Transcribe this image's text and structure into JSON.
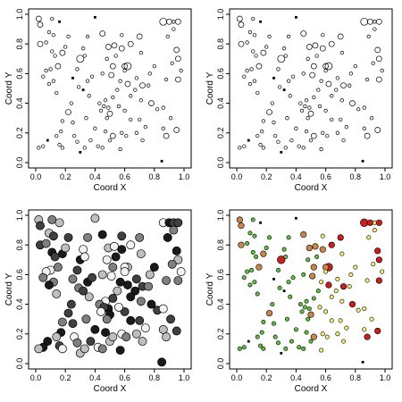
{
  "chart_data": [
    {
      "type": "scatter",
      "style": "open",
      "xlabel": "Coord X",
      "ylabel": "Coord Y",
      "xlim": [
        0,
        1
      ],
      "ylim": [
        0,
        1
      ],
      "xticks": [
        "0.0",
        "0.2",
        "0.4",
        "0.6",
        "0.8",
        "1.0"
      ],
      "yticks": [
        "0.0",
        "0.2",
        "0.4",
        "0.6",
        "0.8",
        "1.0"
      ],
      "grid": false,
      "points": [
        [
          0.02,
          0.97,
          2
        ],
        [
          0.03,
          0.93,
          2
        ],
        [
          0.11,
          0.97,
          1
        ],
        [
          0.16,
          0.95,
          0
        ],
        [
          0.09,
          0.88,
          1
        ],
        [
          0.12,
          0.86,
          1
        ],
        [
          0.03,
          0.8,
          2
        ],
        [
          0.07,
          0.81,
          1
        ],
        [
          0.11,
          0.75,
          1
        ],
        [
          0.18,
          0.74,
          2
        ],
        [
          0.13,
          0.72,
          1
        ],
        [
          0.1,
          0.63,
          1
        ],
        [
          0.12,
          0.55,
          1
        ],
        [
          0.09,
          0.53,
          1
        ],
        [
          0.14,
          0.47,
          1
        ],
        [
          0.3,
          0.7,
          3
        ],
        [
          0.32,
          0.77,
          1
        ],
        [
          0.35,
          0.85,
          1
        ],
        [
          0.4,
          0.98,
          0
        ],
        [
          0.45,
          0.87,
          2
        ],
        [
          0.49,
          0.78,
          2
        ],
        [
          0.48,
          0.7,
          1
        ],
        [
          0.53,
          0.79,
          2
        ],
        [
          0.54,
          0.72,
          1
        ],
        [
          0.58,
          0.77,
          2
        ],
        [
          0.58,
          0.86,
          1
        ],
        [
          0.62,
          0.65,
          3
        ],
        [
          0.64,
          0.8,
          2
        ],
        [
          0.7,
          0.85,
          2
        ],
        [
          0.71,
          0.74,
          1
        ],
        [
          0.68,
          0.57,
          1
        ],
        [
          0.72,
          0.52,
          2
        ],
        [
          0.76,
          0.52,
          1
        ],
        [
          0.8,
          0.65,
          1
        ],
        [
          0.78,
          0.4,
          2
        ],
        [
          0.82,
          0.36,
          1
        ],
        [
          0.86,
          0.37,
          1
        ],
        [
          0.88,
          0.56,
          1
        ],
        [
          0.86,
          0.95,
          3
        ],
        [
          0.9,
          0.95,
          2
        ],
        [
          0.93,
          0.95,
          1
        ],
        [
          0.96,
          0.95,
          2
        ],
        [
          0.93,
          0.9,
          1
        ],
        [
          0.89,
          0.85,
          1
        ],
        [
          0.95,
          0.76,
          2
        ],
        [
          0.96,
          0.7,
          2
        ],
        [
          0.98,
          0.62,
          1
        ],
        [
          0.92,
          0.67,
          1
        ],
        [
          0.96,
          0.56,
          2
        ],
        [
          0.86,
          0.23,
          1
        ],
        [
          0.88,
          0.18,
          2
        ],
        [
          0.95,
          0.22,
          2
        ],
        [
          0.85,
          0.01,
          0
        ],
        [
          0.57,
          0.55,
          1
        ],
        [
          0.55,
          0.49,
          1
        ],
        [
          0.52,
          0.44,
          1
        ],
        [
          0.47,
          0.42,
          1
        ],
        [
          0.43,
          0.4,
          1
        ],
        [
          0.49,
          0.37,
          1
        ],
        [
          0.5,
          0.33,
          2
        ],
        [
          0.46,
          0.38,
          1
        ],
        [
          0.44,
          0.35,
          1
        ],
        [
          0.48,
          0.3,
          1
        ],
        [
          0.4,
          0.23,
          1
        ],
        [
          0.36,
          0.45,
          1
        ],
        [
          0.28,
          0.63,
          1
        ],
        [
          0.25,
          0.57,
          0
        ],
        [
          0.29,
          0.51,
          1
        ],
        [
          0.35,
          0.55,
          1
        ],
        [
          0.32,
          0.49,
          0
        ],
        [
          0.24,
          0.4,
          1
        ],
        [
          0.22,
          0.34,
          2
        ],
        [
          0.18,
          0.28,
          1
        ],
        [
          0.17,
          0.21,
          1
        ],
        [
          0.14,
          0.18,
          1
        ],
        [
          0.16,
          0.12,
          1
        ],
        [
          0.18,
          0.1,
          1
        ],
        [
          0.08,
          0.15,
          0
        ],
        [
          0.05,
          0.11,
          1
        ],
        [
          0.02,
          0.1,
          1
        ],
        [
          0.25,
          0.27,
          1
        ],
        [
          0.26,
          0.18,
          1
        ],
        [
          0.28,
          0.14,
          1
        ],
        [
          0.3,
          0.07,
          0
        ],
        [
          0.33,
          0.1,
          1
        ],
        [
          0.37,
          0.15,
          1
        ],
        [
          0.42,
          0.11,
          1
        ],
        [
          0.45,
          0.1,
          1
        ],
        [
          0.47,
          0.21,
          1
        ],
        [
          0.5,
          0.15,
          1
        ],
        [
          0.52,
          0.18,
          2
        ],
        [
          0.58,
          0.2,
          1
        ],
        [
          0.61,
          0.18,
          1
        ],
        [
          0.64,
          0.29,
          1
        ],
        [
          0.68,
          0.2,
          1
        ],
        [
          0.7,
          0.29,
          1
        ],
        [
          0.74,
          0.24,
          1
        ],
        [
          0.71,
          0.42,
          1
        ],
        [
          0.67,
          0.49,
          1
        ],
        [
          0.62,
          0.53,
          2
        ],
        [
          0.6,
          0.35,
          1
        ],
        [
          0.56,
          0.38,
          1
        ],
        [
          0.6,
          0.65,
          2
        ],
        [
          0.52,
          0.65,
          2
        ],
        [
          0.45,
          0.6,
          1
        ],
        [
          0.38,
          0.58,
          1
        ],
        [
          0.33,
          0.72,
          1
        ],
        [
          0.34,
          0.3,
          1
        ],
        [
          0.15,
          0.65,
          2
        ],
        [
          0.2,
          0.78,
          1
        ],
        [
          0.22,
          0.85,
          1
        ],
        [
          0.07,
          0.62,
          1
        ],
        [
          0.05,
          0.58,
          1
        ],
        [
          0.64,
          0.45,
          1
        ],
        [
          0.77,
          0.6,
          1
        ],
        [
          0.91,
          0.3,
          1
        ],
        [
          0.6,
          0.62,
          1
        ],
        [
          0.51,
          0.59,
          2
        ],
        [
          0.57,
          0.09,
          1
        ],
        [
          0.72,
          0.15,
          1
        ]
      ]
    },
    {
      "type": "scatter",
      "style": "open",
      "xlabel": "Coord X",
      "ylabel": "Coord Y",
      "xlim": [
        0,
        1
      ],
      "ylim": [
        0,
        1
      ],
      "xticks": [
        "0.0",
        "0.2",
        "0.4",
        "0.6",
        "0.8",
        "1.0"
      ],
      "yticks": [
        "0.0",
        "0.2",
        "0.4",
        "0.6",
        "0.8",
        "1.0"
      ],
      "grid": false,
      "points": "same as panel 1"
    },
    {
      "type": "scatter",
      "style": "grayscale",
      "xlabel": "Coord X",
      "ylabel": "Coord Y",
      "xlim": [
        0,
        1
      ],
      "ylim": [
        0,
        1
      ],
      "xticks": [
        "0.0",
        "0.2",
        "0.4",
        "0.6",
        "0.8",
        "1.0"
      ],
      "yticks": [
        "0.0",
        "0.2",
        "0.4",
        "0.6",
        "0.8",
        "1.0"
      ],
      "grid": false,
      "points": "same positions as panel 1, all large"
    },
    {
      "type": "scatter",
      "style": "colored",
      "xlabel": "Coord X",
      "ylabel": "Coord Y",
      "xlim": [
        0,
        1
      ],
      "ylim": [
        0,
        1
      ],
      "xticks": [
        "0.0",
        "0.2",
        "0.4",
        "0.6",
        "0.8",
        "1.0"
      ],
      "yticks": [
        "0.0",
        "0.2",
        "0.4",
        "0.6",
        "0.8",
        "1.0"
      ],
      "grid": false,
      "points": "same as panel 1"
    }
  ],
  "palette": {
    "grayscale": [
      "#f2f2f2",
      "#bfbfbf",
      "#808080",
      "#404040",
      "#1a1a1a"
    ],
    "colored": [
      "#000000",
      "#5fbf3f",
      "#f5ef7a",
      "#c8864a",
      "#c81e1e"
    ]
  }
}
